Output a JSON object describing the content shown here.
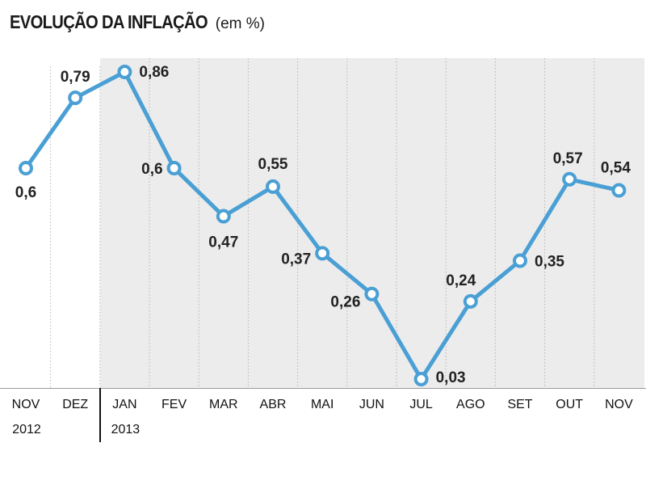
{
  "chart_data": {
    "type": "line",
    "title": "EVOLUÇÃO DA INFLAÇÃO",
    "subtitle": "(em %)",
    "categories": [
      "NOV",
      "DEZ",
      "JAN",
      "FEV",
      "MAR",
      "ABR",
      "MAI",
      "JUN",
      "JUL",
      "AGO",
      "SET",
      "OUT",
      "NOV"
    ],
    "year_labels": [
      {
        "index": 0,
        "label": "2012"
      },
      {
        "index": 2,
        "label": "2013"
      }
    ],
    "series": [
      {
        "values": [
          0.6,
          0.79,
          0.86,
          0.6,
          0.47,
          0.55,
          0.37,
          0.26,
          0.03,
          0.24,
          0.35,
          0.57,
          0.54
        ]
      }
    ],
    "value_labels": [
      "0,6",
      "0,79",
      "0,86",
      "0,6",
      "0,47",
      "0,55",
      "0,37",
      "0,26",
      "0,03",
      "0,24",
      "0,35",
      "0,57",
      "0,54"
    ],
    "ylim": [
      0,
      0.9
    ],
    "grid": "vertical dotted",
    "colors": {
      "line": "#4a9fd4",
      "marker_fill": "#ffffff",
      "shaded_background": "#ececec",
      "text": "#222222"
    }
  }
}
